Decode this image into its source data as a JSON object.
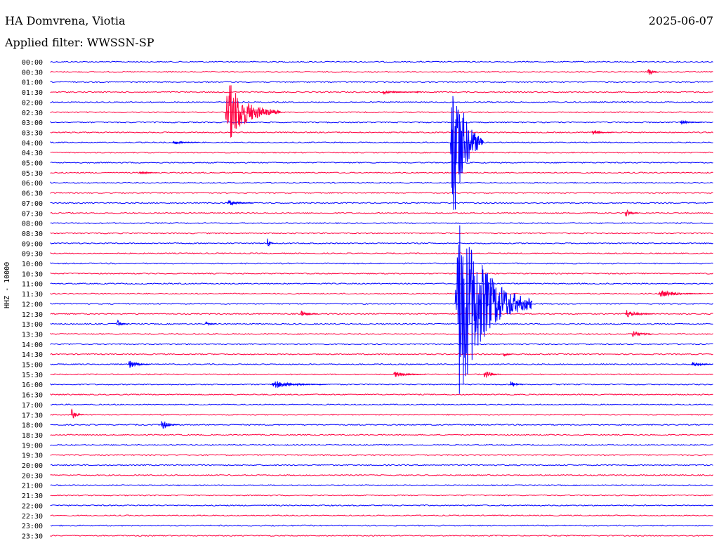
{
  "header": {
    "station": "HA Domvrena, Viotia",
    "date": "2025-06-07",
    "filter": "Applied filter: WWSSN-SP"
  },
  "chart_data": {
    "type": "seismogram",
    "channel_label": "HHZ - 10000",
    "colors": [
      "#0000ff",
      "#ff0040"
    ],
    "row_labels": [
      "00:00",
      "00:30",
      "01:00",
      "01:30",
      "02:00",
      "02:30",
      "03:00",
      "03:30",
      "04:00",
      "04:30",
      "05:00",
      "05:30",
      "06:00",
      "06:30",
      "07:00",
      "07:30",
      "08:00",
      "08:30",
      "09:00",
      "09:30",
      "10:00",
      "10:30",
      "11:00",
      "11:30",
      "12:00",
      "12:30",
      "13:00",
      "13:30",
      "14:00",
      "14:30",
      "15:00",
      "15:30",
      "16:00",
      "16:30",
      "17:00",
      "17:30",
      "18:00",
      "18:30",
      "19:00",
      "19:30",
      "20:00",
      "20:30",
      "21:00",
      "21:30",
      "22:00",
      "22:30",
      "23:00",
      "23:30"
    ],
    "row_minutes": 30,
    "events": [
      {
        "row": 1,
        "minute": 27.0,
        "amplitude": 7,
        "duration_min": 0.5
      },
      {
        "row": 3,
        "minute": 15.0,
        "amplitude": 3,
        "duration_min": 1.5
      },
      {
        "row": 3,
        "minute": 16.5,
        "amplitude": 3,
        "duration_min": 0.3
      },
      {
        "row": 5,
        "minute": 7.9,
        "amplitude": 45,
        "duration_min": 2.5
      },
      {
        "row": 6,
        "minute": 28.5,
        "amplitude": 3,
        "duration_min": 1.0
      },
      {
        "row": 7,
        "minute": 24.5,
        "amplitude": 4,
        "duration_min": 1.0
      },
      {
        "row": 8,
        "minute": 5.5,
        "amplitude": 3,
        "duration_min": 1.2
      },
      {
        "row": 8,
        "minute": 18.1,
        "amplitude": 128,
        "duration_min": 1.5
      },
      {
        "row": 11,
        "minute": 4.0,
        "amplitude": 3,
        "duration_min": 0.8
      },
      {
        "row": 14,
        "minute": 8.0,
        "amplitude": 4,
        "duration_min": 1.2
      },
      {
        "row": 15,
        "minute": 26.0,
        "amplitude": 7,
        "duration_min": 0.6
      },
      {
        "row": 18,
        "minute": 9.8,
        "amplitude": 9,
        "duration_min": 0.3
      },
      {
        "row": 24,
        "minute": 18.3,
        "amplitude": 142,
        "duration_min": 3.5
      },
      {
        "row": 23,
        "minute": 27.5,
        "amplitude": 5,
        "duration_min": 2.0
      },
      {
        "row": 25,
        "minute": 11.3,
        "amplitude": 5,
        "duration_min": 0.8
      },
      {
        "row": 25,
        "minute": 26.0,
        "amplitude": 6,
        "duration_min": 1.3
      },
      {
        "row": 26,
        "minute": 3.0,
        "amplitude": 6,
        "duration_min": 0.5
      },
      {
        "row": 26,
        "minute": 7.0,
        "amplitude": 4,
        "duration_min": 0.5
      },
      {
        "row": 27,
        "minute": 26.3,
        "amplitude": 6,
        "duration_min": 1.0
      },
      {
        "row": 29,
        "minute": 20.5,
        "amplitude": 5,
        "duration_min": 0.4
      },
      {
        "row": 30,
        "minute": 3.5,
        "amplitude": 6,
        "duration_min": 1.0
      },
      {
        "row": 30,
        "minute": 29.0,
        "amplitude": 4,
        "duration_min": 1.0
      },
      {
        "row": 31,
        "minute": 15.5,
        "amplitude": 4,
        "duration_min": 1.5
      },
      {
        "row": 31,
        "minute": 19.6,
        "amplitude": 7,
        "duration_min": 0.8
      },
      {
        "row": 32,
        "minute": 10.0,
        "amplitude": 5,
        "duration_min": 2.5
      },
      {
        "row": 32,
        "minute": 20.8,
        "amplitude": 5,
        "duration_min": 0.6
      },
      {
        "row": 35,
        "minute": 0.9,
        "amplitude": 9,
        "duration_min": 0.6
      },
      {
        "row": 36,
        "minute": 5.0,
        "amplitude": 8,
        "duration_min": 0.8
      }
    ],
    "grid": false
  }
}
